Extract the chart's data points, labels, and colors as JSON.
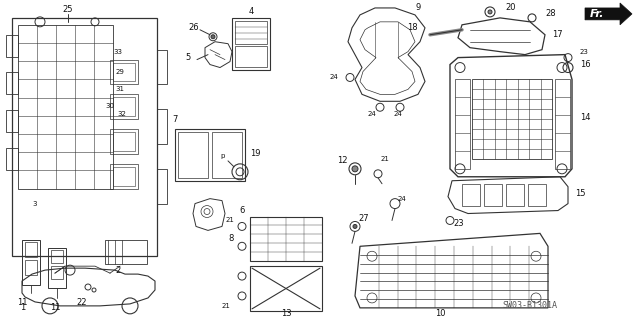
{
  "bg_color": "#ffffff",
  "watermark": "SW03-B1301A",
  "fig_width": 6.4,
  "fig_height": 3.19,
  "dpi": 100,
  "line_color": "#333333",
  "label_color": "#111111",
  "fs_label": 6.0,
  "fs_small": 5.0
}
